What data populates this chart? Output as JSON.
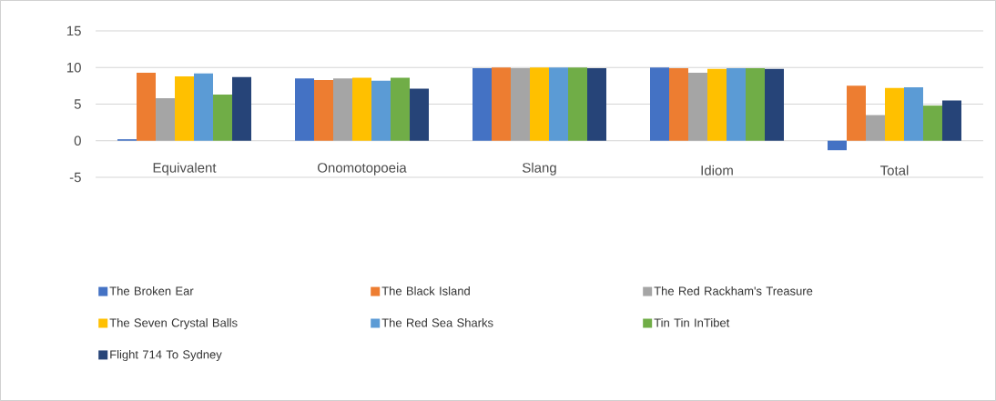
{
  "chart_data": {
    "type": "bar",
    "categories": [
      "Equivalent",
      "Onomotopoeia",
      "Slang",
      "Idiom",
      "Total"
    ],
    "series": [
      {
        "name": "The Broken Ear",
        "color": "#4472c4",
        "values": [
          0.2,
          8.5,
          9.9,
          10,
          -1.3
        ]
      },
      {
        "name": "The Black Island",
        "color": "#ed7d31",
        "values": [
          9.3,
          8.3,
          10,
          9.9,
          7.5
        ]
      },
      {
        "name": "The Red Rackham's Treasure",
        "color": "#a5a5a5",
        "values": [
          5.8,
          8.5,
          9.9,
          9.3,
          3.5
        ]
      },
      {
        "name": "The Seven Crystal Balls",
        "color": "#ffc000",
        "values": [
          8.8,
          8.6,
          10,
          9.8,
          7.2
        ]
      },
      {
        "name": "The Red Sea Sharks",
        "color": "#5b9bd5",
        "values": [
          9.2,
          8.2,
          10,
          9.9,
          7.3
        ]
      },
      {
        "name": "Tin Tin InTibet",
        "color": "#70ad47",
        "values": [
          6.3,
          8.6,
          10,
          9.9,
          4.8
        ]
      },
      {
        "name": "Flight 714 To Sydney",
        "color": "#264478",
        "values": [
          8.7,
          7.1,
          9.9,
          9.8,
          5.5
        ]
      }
    ],
    "ylim": [
      -5,
      15
    ],
    "yticks": [
      -5,
      0,
      5,
      10,
      15
    ],
    "grid": "y",
    "legend": "bottom"
  }
}
